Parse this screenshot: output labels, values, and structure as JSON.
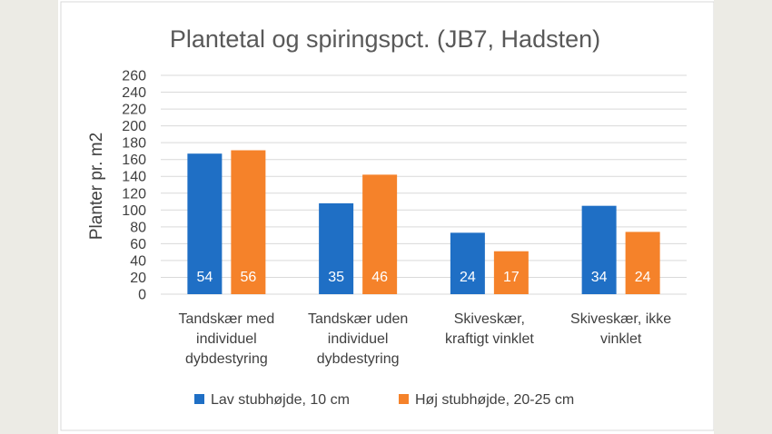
{
  "chart_data": {
    "type": "bar",
    "title": "Plantetal og spiringspct. (JB7, Hadsten)",
    "ylabel": "Planter pr. m2",
    "xlabel": "",
    "ylim": [
      0,
      260
    ],
    "yticks": [
      0,
      20,
      40,
      60,
      80,
      100,
      120,
      140,
      160,
      180,
      200,
      220,
      240,
      260
    ],
    "grid": true,
    "legend_position": "bottom",
    "categories": [
      [
        "Tandskær med",
        "individuel",
        "dybdestyring"
      ],
      [
        "Tandskær uden",
        "individuel",
        "dybdestyring"
      ],
      [
        "Skiveskær,",
        "kraftigt vinklet"
      ],
      [
        "Skiveskær, ikke",
        "vinklet"
      ]
    ],
    "series": [
      {
        "name": "Lav stubhøjde, 10 cm",
        "color": "#1f6fc5",
        "values": [
          167,
          108,
          73,
          105
        ],
        "data_labels": [
          "54",
          "35",
          "24",
          "34"
        ]
      },
      {
        "name": "Høj stubhøjde, 20-25 cm",
        "color": "#f5822a",
        "values": [
          171,
          142,
          51,
          74
        ],
        "data_labels": [
          "56",
          "46",
          "17",
          "24"
        ]
      }
    ]
  }
}
